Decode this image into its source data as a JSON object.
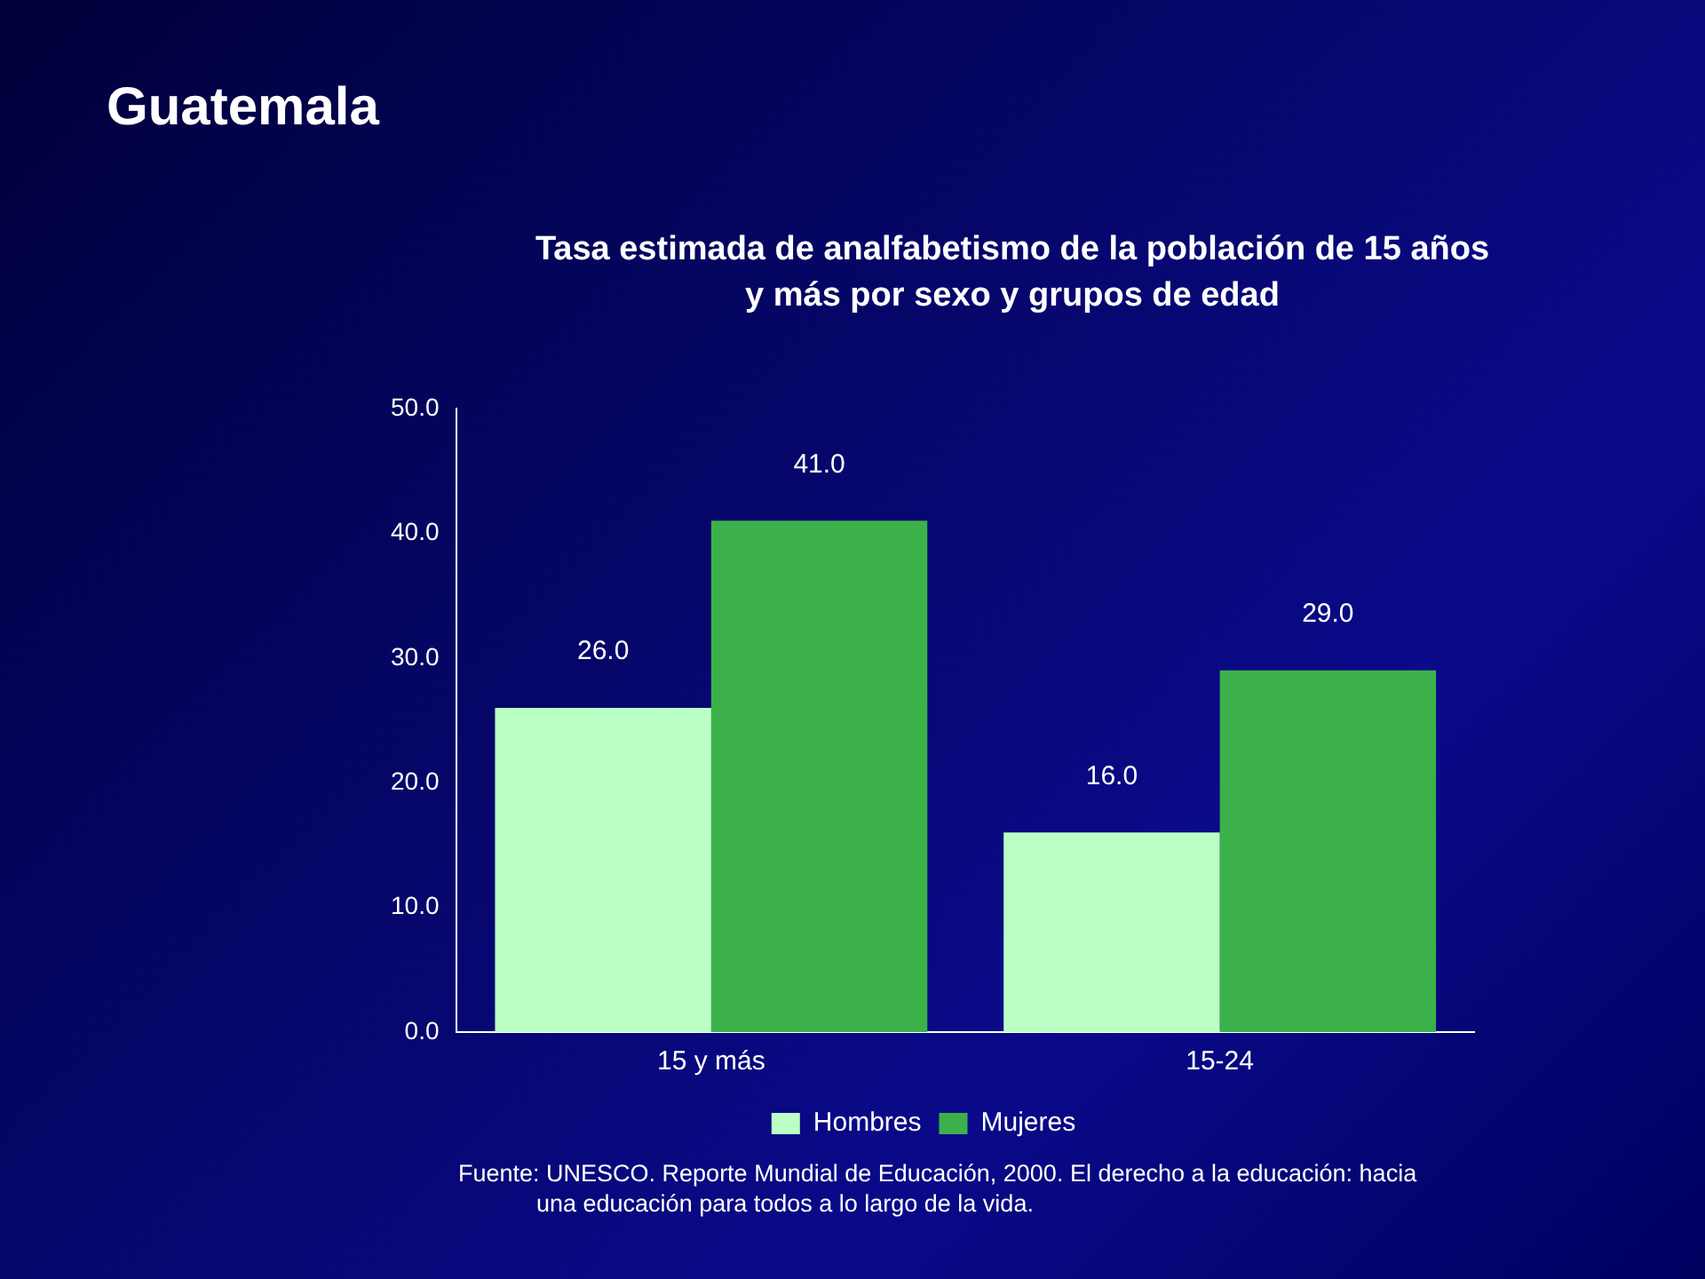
{
  "chart_data": {
    "type": "bar",
    "title": "Guatemala",
    "subtitle": "Tasa estimada de analfabetismo de la población de 15 años y más por sexo y grupos de edad",
    "categories": [
      "15 y más",
      "15-24"
    ],
    "series": [
      {
        "name": "Hombres",
        "color": "#bbffc4",
        "values": [
          26,
          16
        ],
        "value_labels": [
          "26.0",
          "16.0"
        ]
      },
      {
        "name": "Mujeres",
        "color": "#3cb14a",
        "values": [
          41,
          29
        ],
        "value_labels": [
          "41.0",
          "29.0"
        ]
      }
    ],
    "ylim": [
      0,
      50
    ],
    "yticks": [
      {
        "value": 0,
        "label": "0.0"
      },
      {
        "value": 10,
        "label": "10.0"
      },
      {
        "value": 20,
        "label": "20.0"
      },
      {
        "value": 30,
        "label": "30.0"
      },
      {
        "value": 40,
        "label": "40.0"
      },
      {
        "value": 50,
        "label": "50.0"
      }
    ],
    "grid": false,
    "legend": "bottom",
    "annotations": [
      "Fuente: UNESCO. Reporte Mundial de Educación, 2000. El derecho a la educación: hacia una educación para todos a lo largo de la vida."
    ]
  }
}
